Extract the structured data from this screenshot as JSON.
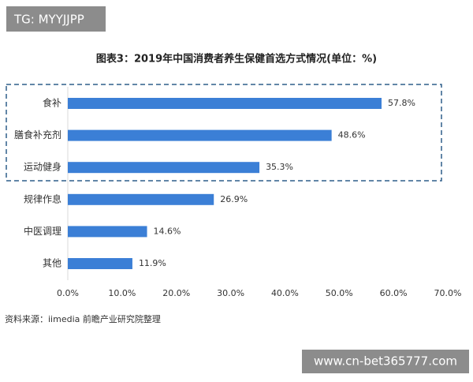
{
  "chart_data": {
    "type": "bar",
    "orientation": "horizontal",
    "title": "图表3：2019年中国消费者养生保健首选方式情况(单位：%)",
    "categories": [
      "食补",
      "膳食补充剂",
      "运动健身",
      "规律作息",
      "中医调理",
      "其他"
    ],
    "values": [
      57.8,
      48.6,
      35.3,
      26.9,
      14.6,
      11.9
    ],
    "value_labels": [
      "57.8%",
      "48.6%",
      "35.3%",
      "26.9%",
      "14.6%",
      "11.9%"
    ],
    "color": "#3b7fd6",
    "xlim": [
      0,
      70
    ],
    "xticks": [
      {
        "value": 0,
        "label": "0.0%"
      },
      {
        "value": 10,
        "label": "10.0%"
      },
      {
        "value": 20,
        "label": "20.0%"
      },
      {
        "value": 30,
        "label": "30.0%"
      },
      {
        "value": 40,
        "label": "40.0%"
      },
      {
        "value": 50,
        "label": "50.0%"
      },
      {
        "value": 60,
        "label": "60.0%"
      },
      {
        "value": 70,
        "label": "70.0%"
      }
    ],
    "grid": false,
    "source": "资料来源：iimedia 前瞻产业研究院整理"
  },
  "overlay": {
    "top_badge": "TG: MYYJJPP",
    "bottom_badge": "www.cn-bet365777.com"
  }
}
